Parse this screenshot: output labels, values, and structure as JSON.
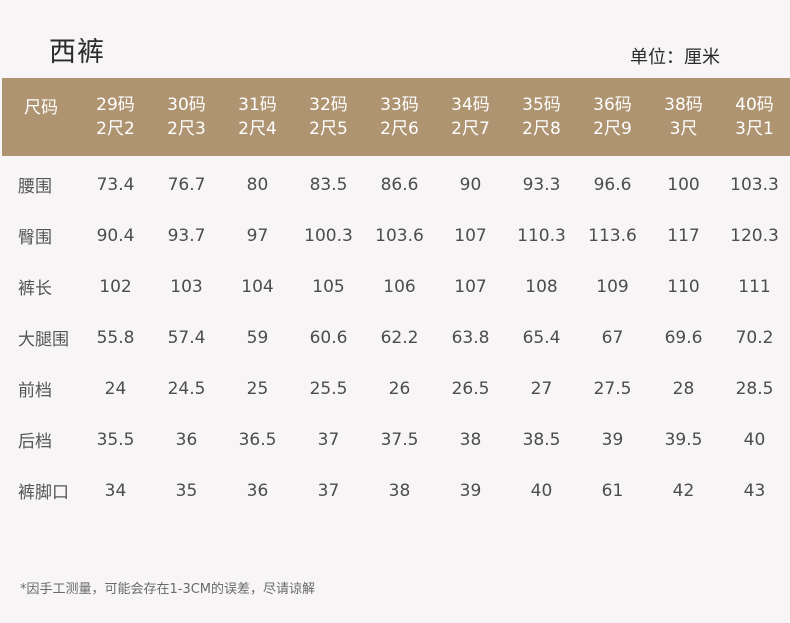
{
  "title": "西裤",
  "unit": "单位：厘米",
  "header": {
    "first": "尺码",
    "sizes": [
      {
        "code": "29码",
        "chi": "2尺2"
      },
      {
        "code": "30码",
        "chi": "2尺3"
      },
      {
        "code": "31码",
        "chi": "2尺4"
      },
      {
        "code": "32码",
        "chi": "2尺5"
      },
      {
        "code": "33码",
        "chi": "2尺6"
      },
      {
        "code": "34码",
        "chi": "2尺7"
      },
      {
        "code": "35码",
        "chi": "2尺8"
      },
      {
        "code": "36码",
        "chi": "2尺9"
      },
      {
        "code": "38码",
        "chi": "3尺"
      },
      {
        "code": "40码",
        "chi": "3尺1"
      }
    ]
  },
  "rows": [
    {
      "label": "腰围",
      "values": [
        "73.4",
        "76.7",
        "80",
        "83.5",
        "86.6",
        "90",
        "93.3",
        "96.6",
        "100",
        "103.3"
      ]
    },
    {
      "label": "臀围",
      "values": [
        "90.4",
        "93.7",
        "97",
        "100.3",
        "103.6",
        "107",
        "110.3",
        "113.6",
        "117",
        "120.3"
      ]
    },
    {
      "label": "裤长",
      "values": [
        "102",
        "103",
        "104",
        "105",
        "106",
        "107",
        "108",
        "109",
        "110",
        "111"
      ]
    },
    {
      "label": "大腿围",
      "values": [
        "55.8",
        "57.4",
        "59",
        "60.6",
        "62.2",
        "63.8",
        "65.4",
        "67",
        "69.6",
        "70.2"
      ]
    },
    {
      "label": "前档",
      "values": [
        "24",
        "24.5",
        "25",
        "25.5",
        "26",
        "26.5",
        "27",
        "27.5",
        "28",
        "28.5"
      ]
    },
    {
      "label": "后档",
      "values": [
        "35.5",
        "36",
        "36.5",
        "37",
        "37.5",
        "38",
        "38.5",
        "39",
        "39.5",
        "40"
      ]
    },
    {
      "label": "裤脚口",
      "values": [
        "34",
        "35",
        "36",
        "37",
        "38",
        "39",
        "40",
        "61",
        "42",
        "43"
      ]
    }
  ],
  "note": "*因手工测量，可能会存在1-3CM的误差，尽请谅解",
  "colors": {
    "header_bg": "#af9472",
    "page_bg": "#f7f5f6"
  }
}
